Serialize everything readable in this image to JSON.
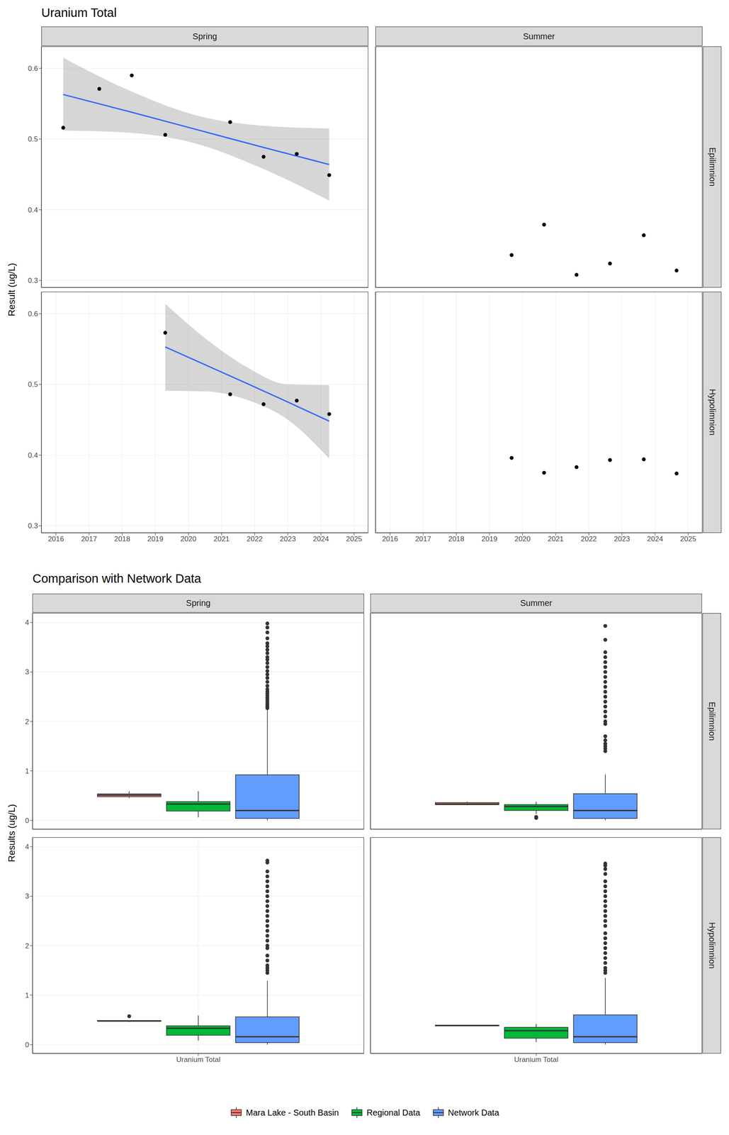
{
  "chart_data": [
    {
      "type": "scatter",
      "title": "Uranium Total",
      "y_label": "Result (ug/L)",
      "columns": [
        "Spring",
        "Summer"
      ],
      "rows": [
        "Epilimnion",
        "Hypolimnion"
      ],
      "xlim": [
        2015.56,
        2025.43
      ],
      "xticks": [
        2016,
        2017,
        2018,
        2019,
        2020,
        2021,
        2022,
        2023,
        2024,
        2025
      ],
      "ylim": [
        0.29,
        0.631
      ],
      "yticks": [
        0.3,
        0.4,
        0.5,
        0.6
      ],
      "grid": true,
      "panels": [
        {
          "column": "Spring",
          "row": "Epilimnion",
          "points": {
            "x": [
              2016.22,
              2017.31,
              2018.29,
              2019.3,
              2021.26,
              2022.27,
              2023.27,
              2024.25
            ],
            "values": [
              0.516,
              0.571,
              0.59,
              0.506,
              0.524,
              0.475,
              0.479,
              0.449
            ],
            "color": "#000000"
          },
          "trend": {
            "x": [
              2016.22,
              2018.2,
              2020.2,
              2022.2,
              2024.25
            ],
            "values": [
              0.563,
              0.539,
              0.514,
              0.489,
              0.464
            ],
            "lower": [
              0.512,
              0.509,
              0.494,
              0.459,
              0.413
            ],
            "upper": [
              0.615,
              0.569,
              0.534,
              0.519,
              0.515
            ],
            "color": "#3366ff"
          }
        },
        {
          "column": "Summer",
          "row": "Epilimnion",
          "points": {
            "x": [
              2019.67,
              2020.65,
              2021.63,
              2022.64,
              2023.66,
              2024.65
            ],
            "values": [
              0.336,
              0.379,
              0.308,
              0.324,
              0.364,
              0.314
            ],
            "color": "#000000"
          }
        },
        {
          "column": "Spring",
          "row": "Hypolimnion",
          "points": {
            "x": [
              2019.3,
              2021.26,
              2022.27,
              2023.27,
              2024.25
            ],
            "values": [
              0.573,
              0.486,
              0.472,
              0.477,
              0.458
            ],
            "color": "#000000"
          },
          "trend": {
            "x": [
              2019.3,
              2020.54,
              2021.78,
              2023.0,
              2024.25
            ],
            "values": [
              0.553,
              0.527,
              0.501,
              0.475,
              0.448
            ],
            "lower": [
              0.491,
              0.49,
              0.478,
              0.45,
              0.395
            ],
            "upper": [
              0.614,
              0.564,
              0.524,
              0.5,
              0.499
            ],
            "color": "#3366ff"
          }
        },
        {
          "column": "Summer",
          "row": "Hypolimnion",
          "points": {
            "x": [
              2019.67,
              2020.65,
              2021.63,
              2022.64,
              2023.66,
              2024.65
            ],
            "values": [
              0.396,
              0.375,
              0.383,
              0.393,
              0.394,
              0.374
            ],
            "color": "#000000"
          }
        }
      ]
    },
    {
      "type": "box",
      "title": "Comparison with Network Data",
      "y_label": "Results (ug/L)",
      "categories": [
        "Uranium Total"
      ],
      "columns": [
        "Spring",
        "Summer"
      ],
      "rows": [
        "Epilimnion",
        "Hypolimnion"
      ],
      "ylim": [
        -0.18,
        4.19
      ],
      "yticks": [
        0,
        1,
        2,
        3,
        4
      ],
      "grid": true,
      "legend": "bottom",
      "series": [
        {
          "name": "Mara Lake - South Basin",
          "color": "#f8766d"
        },
        {
          "name": "Regional Data",
          "color": "#00ba38"
        },
        {
          "name": "Network Data",
          "color": "#619cff"
        }
      ],
      "panels": [
        {
          "column": "Spring",
          "row": "Epilimnion",
          "boxes": [
            {
              "min": 0.449,
              "q1": 0.479,
              "median": 0.511,
              "q3": 0.534,
              "max": 0.59,
              "outliers": []
            },
            {
              "min": 0.06,
              "q1": 0.19,
              "median": 0.33,
              "q3": 0.38,
              "max": 0.59,
              "outliers": []
            },
            {
              "min": 0.0,
              "q1": 0.04,
              "median": 0.2,
              "q3": 0.92,
              "max": 2.25,
              "outliers": [
                2.27,
                2.3,
                2.33,
                2.36,
                2.4,
                2.44,
                2.48,
                2.52,
                2.56,
                2.6,
                2.65,
                2.72,
                2.8,
                2.88,
                2.95,
                3.02,
                3.1,
                3.18,
                3.25,
                3.3,
                3.38,
                3.45,
                3.52,
                3.58,
                3.68,
                3.8,
                3.9,
                3.98
              ]
            }
          ]
        },
        {
          "column": "Summer",
          "row": "Epilimnion",
          "boxes": [
            {
              "min": 0.308,
              "q1": 0.318,
              "median": 0.33,
              "q3": 0.36,
              "max": 0.379,
              "outliers": []
            },
            {
              "min": 0.13,
              "q1": 0.2,
              "median": 0.28,
              "q3": 0.32,
              "max": 0.38,
              "outliers": [
                0.05,
                0.07
              ]
            },
            {
              "min": 0.0,
              "q1": 0.04,
              "median": 0.2,
              "q3": 0.54,
              "max": 0.93,
              "outliers": [
                1.4,
                1.45,
                1.5,
                1.55,
                1.62,
                1.7,
                1.95,
                2.0,
                2.1,
                2.2,
                2.3,
                2.4,
                2.5,
                2.6,
                2.7,
                2.8,
                2.9,
                3.0,
                3.1,
                3.2,
                3.3,
                3.4,
                3.65,
                3.93
              ]
            }
          ]
        },
        {
          "column": "Spring",
          "row": "Hypolimnion",
          "boxes": [
            {
              "min": 0.458,
              "q1": 0.472,
              "median": 0.477,
              "q3": 0.486,
              "max": 0.486,
              "outliers": [
                0.573
              ]
            },
            {
              "min": 0.08,
              "q1": 0.19,
              "median": 0.33,
              "q3": 0.38,
              "max": 0.59,
              "outliers": []
            },
            {
              "min": 0.0,
              "q1": 0.04,
              "median": 0.16,
              "q3": 0.56,
              "max": 1.29,
              "outliers": [
                1.45,
                1.5,
                1.55,
                1.6,
                1.7,
                1.8,
                1.95,
                2.0,
                2.1,
                2.2,
                2.3,
                2.4,
                2.5,
                2.6,
                2.7,
                2.8,
                2.9,
                3.0,
                3.1,
                3.2,
                3.3,
                3.4,
                3.5,
                3.68,
                3.72
              ]
            }
          ]
        },
        {
          "column": "Summer",
          "row": "Hypolimnion",
          "boxes": [
            {
              "min": 0.373,
              "q1": 0.376,
              "median": 0.388,
              "q3": 0.394,
              "max": 0.396,
              "outliers": []
            },
            {
              "min": 0.05,
              "q1": 0.13,
              "median": 0.28,
              "q3": 0.35,
              "max": 0.42,
              "outliers": []
            },
            {
              "min": 0.0,
              "q1": 0.04,
              "median": 0.16,
              "q3": 0.6,
              "max": 1.35,
              "outliers": [
                1.45,
                1.5,
                1.55,
                1.65,
                1.75,
                1.85,
                1.95,
                2.05,
                2.15,
                2.25,
                2.4,
                2.5,
                2.6,
                2.7,
                2.8,
                2.9,
                3.0,
                3.1,
                3.2,
                3.3,
                3.45,
                3.55,
                3.62,
                3.66
              ]
            }
          ]
        }
      ]
    }
  ]
}
